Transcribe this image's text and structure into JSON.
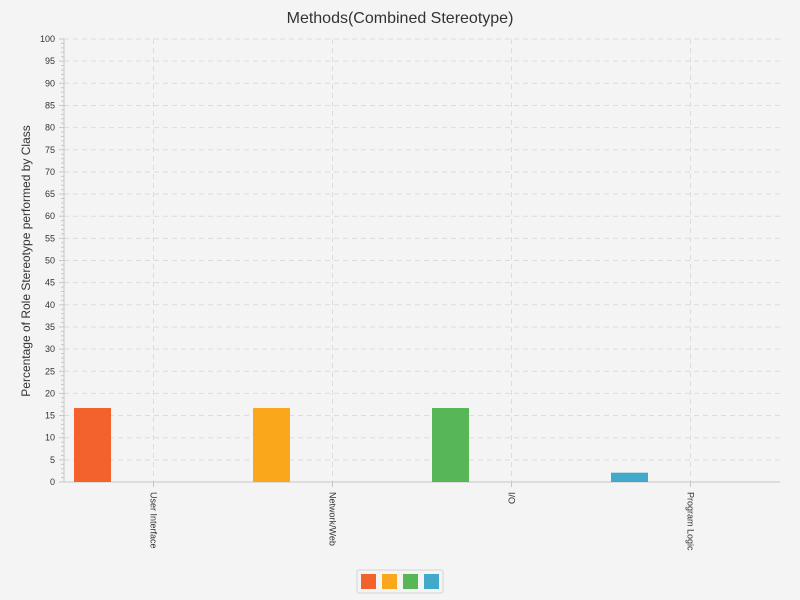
{
  "chart_data": {
    "type": "bar",
    "title": "Methods(Combined Stereotype)",
    "xlabel": "",
    "ylabel": "Percentage of Role Stereotype performed by Class",
    "ylim": [
      0,
      100
    ],
    "y_major_step": 5,
    "y_minor_step": 1,
    "grid": true,
    "legend_position": "bottom-center",
    "categories": [
      "User Interface",
      "Network/Web",
      "I/O",
      "Program Logic"
    ],
    "series": [
      {
        "values": [
          16.7,
          16.7,
          16.7,
          2.1
        ]
      }
    ],
    "bar_colors": [
      "#f3622d",
      "#fba71b",
      "#57b757",
      "#41a9c9"
    ],
    "legend_colors": [
      "#f3622d",
      "#fba71b",
      "#57b757",
      "#41a9c9"
    ]
  }
}
